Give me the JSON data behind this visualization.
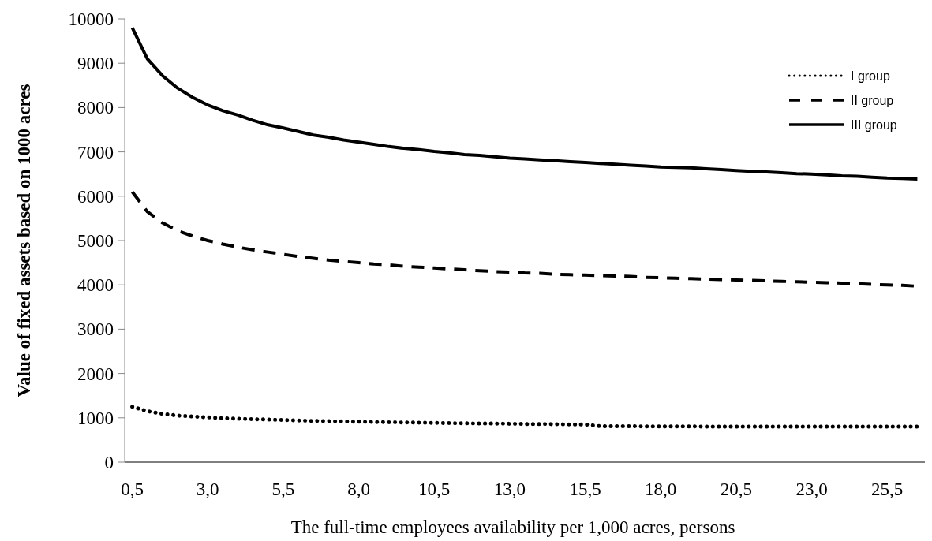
{
  "chart_data": {
    "type": "line",
    "xlabel": "The full-time employees availability per 1,000 acres, persons",
    "ylabel": "Value of fixed assets based on 1000 acres",
    "x": [
      0.5,
      1,
      1.5,
      2,
      2.5,
      3,
      3.5,
      4,
      4.5,
      5,
      5.5,
      6,
      6.5,
      7,
      7.5,
      8,
      8.5,
      9,
      9.5,
      10,
      10.5,
      11,
      11.5,
      12,
      12.5,
      13,
      13.5,
      14,
      14.5,
      15,
      15.5,
      16,
      16.5,
      17,
      17.5,
      18,
      18.5,
      19,
      19.5,
      20,
      20.5,
      21,
      21.5,
      22,
      22.5,
      23,
      23.5,
      24,
      24.5,
      25,
      25.5,
      26,
      26.5
    ],
    "xlim": [
      0.25,
      26.75
    ],
    "xticks": [
      {
        "value": 0.5,
        "label": "0,5"
      },
      {
        "value": 3,
        "label": "3,0"
      },
      {
        "value": 5.5,
        "label": "5,5"
      },
      {
        "value": 8,
        "label": "8,0"
      },
      {
        "value": 10.5,
        "label": "10,5"
      },
      {
        "value": 13,
        "label": "13,0"
      },
      {
        "value": 15.5,
        "label": "15,5"
      },
      {
        "value": 18,
        "label": "18,0"
      },
      {
        "value": 20.5,
        "label": "20,5"
      },
      {
        "value": 23,
        "label": "23,0"
      },
      {
        "value": 25.5,
        "label": "25,5"
      }
    ],
    "ylim": [
      0,
      10000
    ],
    "yticks": [
      0,
      1000,
      2000,
      3000,
      4000,
      5000,
      6000,
      7000,
      8000,
      9000,
      10000
    ],
    "grid": false,
    "legend": "top right",
    "marker": "none",
    "series": [
      {
        "name": "I group",
        "color": "#000000",
        "line_style": "dotted",
        "values": [
          1250,
          1150,
          1090,
          1050,
          1030,
          1010,
          990,
          980,
          970,
          960,
          950,
          940,
          930,
          925,
          920,
          910,
          905,
          900,
          895,
          890,
          885,
          880,
          875,
          870,
          870,
          865,
          860,
          860,
          855,
          850,
          850,
          810,
          810,
          810,
          805,
          805,
          805,
          805,
          800,
          800,
          800,
          800,
          800,
          800,
          800,
          800,
          800,
          800,
          800,
          800,
          800,
          800,
          800
        ]
      },
      {
        "name": "II group",
        "color": "#000000",
        "line_style": "dashed",
        "values": [
          6100,
          5650,
          5400,
          5220,
          5100,
          5000,
          4920,
          4850,
          4790,
          4740,
          4690,
          4640,
          4600,
          4560,
          4530,
          4500,
          4470,
          4450,
          4420,
          4400,
          4380,
          4360,
          4340,
          4320,
          4300,
          4290,
          4270,
          4260,
          4240,
          4230,
          4220,
          4210,
          4200,
          4190,
          4170,
          4160,
          4150,
          4140,
          4130,
          4120,
          4110,
          4100,
          4090,
          4080,
          4070,
          4060,
          4050,
          4040,
          4030,
          4010,
          4000,
          3990,
          3970
        ]
      },
      {
        "name": "III group",
        "color": "#000000",
        "line_style": "solid",
        "values": [
          9800,
          9100,
          8720,
          8440,
          8230,
          8060,
          7930,
          7830,
          7710,
          7610,
          7540,
          7460,
          7380,
          7330,
          7270,
          7220,
          7170,
          7120,
          7080,
          7050,
          7010,
          6980,
          6940,
          6920,
          6890,
          6860,
          6840,
          6820,
          6800,
          6780,
          6760,
          6740,
          6720,
          6700,
          6680,
          6660,
          6650,
          6640,
          6620,
          6600,
          6580,
          6560,
          6550,
          6530,
          6510,
          6500,
          6480,
          6460,
          6450,
          6430,
          6410,
          6400,
          6390
        ]
      }
    ]
  }
}
